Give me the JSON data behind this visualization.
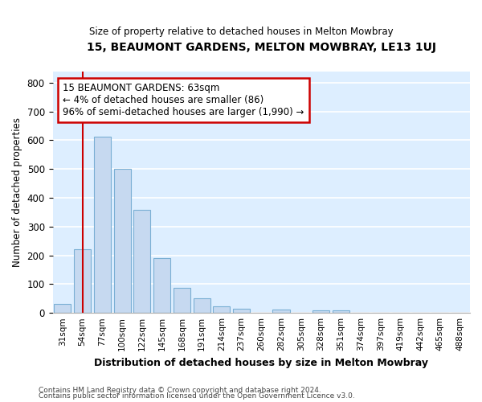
{
  "title": "15, BEAUMONT GARDENS, MELTON MOWBRAY, LE13 1UJ",
  "subtitle": "Size of property relative to detached houses in Melton Mowbray",
  "xlabel": "Distribution of detached houses by size in Melton Mowbray",
  "ylabel": "Number of detached properties",
  "categories": [
    "31sqm",
    "54sqm",
    "77sqm",
    "100sqm",
    "122sqm",
    "145sqm",
    "168sqm",
    "191sqm",
    "214sqm",
    "237sqm",
    "260sqm",
    "282sqm",
    "305sqm",
    "328sqm",
    "351sqm",
    "374sqm",
    "397sqm",
    "419sqm",
    "442sqm",
    "465sqm",
    "488sqm"
  ],
  "values": [
    32,
    222,
    612,
    500,
    358,
    190,
    86,
    50,
    24,
    15,
    0,
    11,
    0,
    8,
    8,
    0,
    0,
    0,
    0,
    0,
    0
  ],
  "bar_color": "#c6d9f0",
  "bar_edge_color": "#7aafd4",
  "plot_bg_color": "#ddeeff",
  "grid_color": "#ffffff",
  "annotation_box_text": "15 BEAUMONT GARDENS: 63sqm\n← 4% of detached houses are smaller (86)\n96% of semi-detached houses are larger (1,990) →",
  "annotation_box_color": "#ffffff",
  "annotation_box_edge_color": "#cc0000",
  "vline_color": "#cc0000",
  "vline_x": 1.0,
  "ylim": [
    0,
    840
  ],
  "yticks": [
    0,
    100,
    200,
    300,
    400,
    500,
    600,
    700,
    800
  ],
  "footnote1": "Contains HM Land Registry data © Crown copyright and database right 2024.",
  "footnote2": "Contains public sector information licensed under the Open Government Licence v3.0."
}
